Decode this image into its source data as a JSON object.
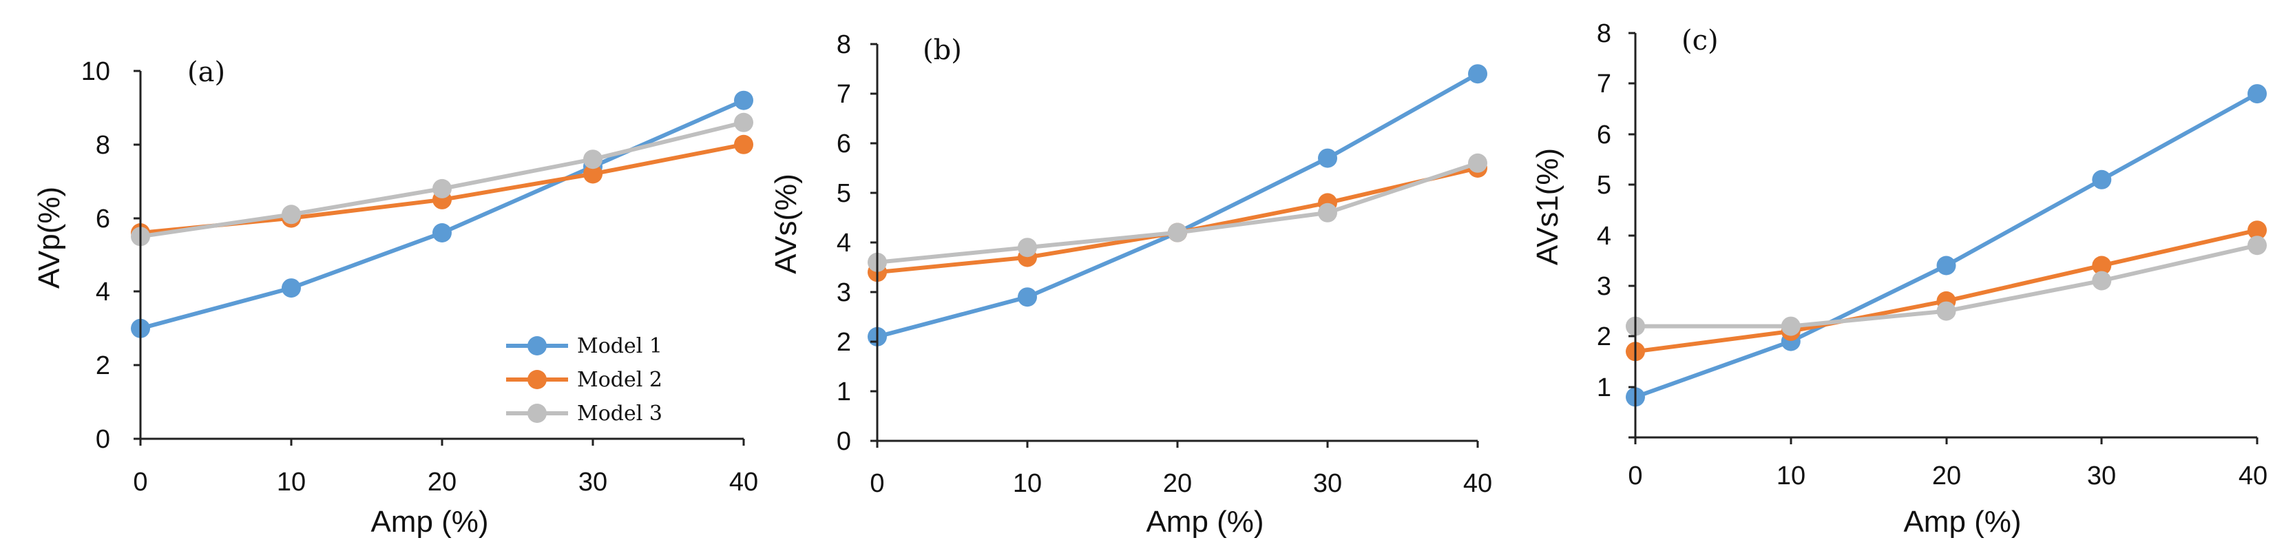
{
  "colors": {
    "series": [
      "#5b9bd5",
      "#ed7d31",
      "#bfbfbf"
    ]
  },
  "legend": [
    "Model 1",
    "Model 2",
    "Model 3"
  ],
  "chart_data": [
    {
      "type": "line",
      "panel": "(a)",
      "xlabel": "Amp (%)",
      "ylabel": "AVp(%)",
      "x": [
        0,
        10,
        20,
        30,
        40
      ],
      "xticks": [
        "0",
        "10",
        "20",
        "30",
        "40"
      ],
      "ylim": [
        0,
        10
      ],
      "yticks": [
        "0",
        "2",
        "4",
        "6",
        "8",
        "10"
      ],
      "series": [
        {
          "name": "Model 1",
          "values": [
            3.0,
            4.1,
            5.6,
            7.4,
            9.2
          ]
        },
        {
          "name": "Model 2",
          "values": [
            5.6,
            6.0,
            6.5,
            7.2,
            8.0
          ]
        },
        {
          "name": "Model 3",
          "values": [
            5.5,
            6.1,
            6.8,
            7.6,
            8.6
          ]
        }
      ]
    },
    {
      "type": "line",
      "panel": "(b)",
      "xlabel": "Amp (%)",
      "ylabel": "AVs(%)",
      "x": [
        0,
        10,
        20,
        30,
        40
      ],
      "xticks": [
        "0",
        "10",
        "20",
        "30",
        "40"
      ],
      "ylim": [
        0,
        8
      ],
      "yticks": [
        "0",
        "1",
        "2",
        "3",
        "4",
        "5",
        "6",
        "7",
        "8"
      ],
      "series": [
        {
          "name": "Model 1",
          "values": [
            2.1,
            2.9,
            4.2,
            5.7,
            7.4
          ]
        },
        {
          "name": "Model 2",
          "values": [
            3.4,
            3.7,
            4.2,
            4.8,
            5.5
          ]
        },
        {
          "name": "Model 3",
          "values": [
            3.6,
            3.9,
            4.2,
            4.6,
            5.6
          ]
        }
      ]
    },
    {
      "type": "line",
      "panel": "(c)",
      "xlabel": "Amp (%)",
      "ylabel": "AVs1(%)",
      "x": [
        0,
        10,
        20,
        30,
        40
      ],
      "xticks": [
        "0",
        "10",
        "20",
        "30",
        "40"
      ],
      "ylim": [
        0,
        8
      ],
      "yticks": [
        "1",
        "2",
        "3",
        "4",
        "5",
        "6",
        "7",
        "8"
      ],
      "series": [
        {
          "name": "Model 1",
          "values": [
            0.8,
            1.9,
            3.4,
            5.1,
            6.8
          ]
        },
        {
          "name": "Model 2",
          "values": [
            1.7,
            2.1,
            2.7,
            3.4,
            4.1
          ]
        },
        {
          "name": "Model 3",
          "values": [
            2.2,
            2.2,
            2.5,
            3.1,
            3.8
          ]
        }
      ]
    }
  ]
}
